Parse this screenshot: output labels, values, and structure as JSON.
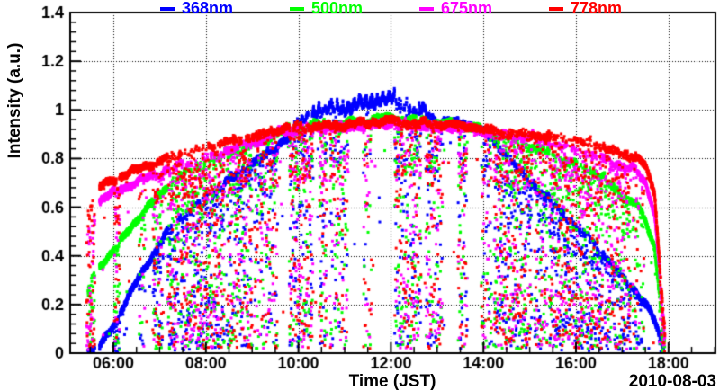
{
  "chart_data": {
    "type": "scatter",
    "title": "",
    "xlabel": "Time (JST)",
    "ylabel": "Intensity (a.u.)",
    "date_label": "2010-08-03",
    "legend_position": "top",
    "grid": "dotted lines at major ticks, both axes",
    "xlim_hours": [
      5.066,
      19.015
    ],
    "ylim": [
      0,
      1.4
    ],
    "x_ticks": [
      {
        "hour": 6,
        "label": "06:00"
      },
      {
        "hour": 8,
        "label": "08:00"
      },
      {
        "hour": 10,
        "label": "10:00"
      },
      {
        "hour": 12,
        "label": "12:00"
      },
      {
        "hour": 14,
        "label": "14:00"
      },
      {
        "hour": 16,
        "label": "16:00"
      },
      {
        "hour": 18,
        "label": "18:00"
      }
    ],
    "x_minor_step_hours": 0.5,
    "y_ticks": [
      {
        "value": 0,
        "label": "0"
      },
      {
        "value": 0.2,
        "label": "0.2"
      },
      {
        "value": 0.4,
        "label": "0.4"
      },
      {
        "value": 0.6,
        "label": "0.6"
      },
      {
        "value": 0.8,
        "label": "0.8"
      },
      {
        "value": 1.0,
        "label": "1"
      },
      {
        "value": 1.2,
        "label": "1.2"
      },
      {
        "value": 1.4,
        "label": "1.4"
      }
    ],
    "y_minor_step": 0.04,
    "sample_step_hours": 0.004,
    "series": [
      {
        "name": "368nm",
        "color": "#0000ff",
        "start_hour": 5.45,
        "end_hour": 17.9,
        "noon_spikes": {
          "range": [
            9.85,
            12.75
          ],
          "amplitude": 0.045
        },
        "envelope": [
          [
            5.45,
            0.02
          ],
          [
            5.7,
            0.03
          ],
          [
            6.0,
            0.12
          ],
          [
            6.5,
            0.3
          ],
          [
            7.0,
            0.46
          ],
          [
            7.4,
            0.56
          ],
          [
            7.8,
            0.63
          ],
          [
            8.2,
            0.68
          ],
          [
            8.6,
            0.74
          ],
          [
            9.0,
            0.79
          ],
          [
            9.4,
            0.84
          ],
          [
            9.8,
            0.9
          ],
          [
            10.0,
            0.95
          ],
          [
            10.2,
            0.97
          ],
          [
            10.5,
            0.99
          ],
          [
            10.8,
            1.01
          ],
          [
            11.1,
            1.0
          ],
          [
            11.4,
            1.02
          ],
          [
            11.7,
            1.03
          ],
          [
            12.0,
            1.04
          ],
          [
            12.2,
            1.02
          ],
          [
            12.5,
            1.01
          ],
          [
            12.7,
            0.99
          ],
          [
            13.0,
            0.97
          ],
          [
            13.3,
            0.96
          ],
          [
            13.6,
            0.95
          ],
          [
            14.0,
            0.92
          ],
          [
            14.5,
            0.83
          ],
          [
            15.0,
            0.72
          ],
          [
            15.5,
            0.63
          ],
          [
            16.0,
            0.54
          ],
          [
            16.3,
            0.48
          ],
          [
            16.6,
            0.42
          ],
          [
            17.0,
            0.33
          ],
          [
            17.3,
            0.26
          ],
          [
            17.5,
            0.21
          ],
          [
            17.7,
            0.14
          ],
          [
            17.9,
            0.03
          ]
        ]
      },
      {
        "name": "500nm",
        "color": "#00ff00",
        "start_hour": 5.45,
        "end_hour": 17.92,
        "envelope": [
          [
            5.45,
            0.3
          ],
          [
            5.7,
            0.36
          ],
          [
            6.0,
            0.43
          ],
          [
            6.3,
            0.5
          ],
          [
            6.7,
            0.6
          ],
          [
            7.0,
            0.66
          ],
          [
            7.3,
            0.72
          ],
          [
            7.6,
            0.76
          ],
          [
            8.0,
            0.8
          ],
          [
            8.5,
            0.84
          ],
          [
            9.0,
            0.87
          ],
          [
            9.5,
            0.91
          ],
          [
            10.0,
            0.945
          ],
          [
            10.5,
            0.95
          ],
          [
            11.0,
            0.955
          ],
          [
            11.5,
            0.965
          ],
          [
            12.0,
            0.975
          ],
          [
            12.5,
            0.97
          ],
          [
            13.0,
            0.955
          ],
          [
            13.5,
            0.945
          ],
          [
            14.0,
            0.925
          ],
          [
            14.5,
            0.895
          ],
          [
            15.0,
            0.86
          ],
          [
            15.5,
            0.83
          ],
          [
            16.0,
            0.79
          ],
          [
            16.3,
            0.77
          ],
          [
            16.6,
            0.73
          ],
          [
            17.0,
            0.66
          ],
          [
            17.3,
            0.62
          ],
          [
            17.5,
            0.55
          ],
          [
            17.7,
            0.44
          ],
          [
            17.92,
            0.05
          ]
        ]
      },
      {
        "name": "675nm",
        "color": "#ff00ff",
        "start_hour": 5.42,
        "end_hour": 17.92,
        "envelope": [
          [
            5.42,
            0.5
          ],
          [
            5.7,
            0.63
          ],
          [
            6.0,
            0.67
          ],
          [
            6.5,
            0.71
          ],
          [
            7.0,
            0.75
          ],
          [
            7.5,
            0.79
          ],
          [
            8.0,
            0.82
          ],
          [
            8.5,
            0.85
          ],
          [
            9.0,
            0.88
          ],
          [
            9.5,
            0.915
          ],
          [
            10.0,
            0.935
          ],
          [
            10.5,
            0.935
          ],
          [
            11.0,
            0.94
          ],
          [
            11.5,
            0.945
          ],
          [
            12.0,
            0.955
          ],
          [
            12.5,
            0.95
          ],
          [
            13.0,
            0.94
          ],
          [
            13.5,
            0.935
          ],
          [
            14.0,
            0.92
          ],
          [
            14.5,
            0.91
          ],
          [
            15.0,
            0.9
          ],
          [
            15.5,
            0.88
          ],
          [
            16.0,
            0.85
          ],
          [
            16.5,
            0.82
          ],
          [
            17.0,
            0.78
          ],
          [
            17.3,
            0.76
          ],
          [
            17.5,
            0.71
          ],
          [
            17.7,
            0.58
          ],
          [
            17.92,
            0.08
          ]
        ]
      },
      {
        "name": "778nm",
        "color": "#ff0000",
        "start_hour": 5.42,
        "end_hour": 17.92,
        "envelope": [
          [
            5.42,
            0.58
          ],
          [
            5.7,
            0.69
          ],
          [
            6.0,
            0.72
          ],
          [
            6.5,
            0.76
          ],
          [
            7.0,
            0.8
          ],
          [
            7.5,
            0.835
          ],
          [
            8.0,
            0.86
          ],
          [
            8.5,
            0.88
          ],
          [
            9.0,
            0.9
          ],
          [
            9.5,
            0.925
          ],
          [
            10.0,
            0.945
          ],
          [
            10.5,
            0.945
          ],
          [
            11.0,
            0.95
          ],
          [
            11.5,
            0.955
          ],
          [
            12.0,
            0.965
          ],
          [
            12.5,
            0.96
          ],
          [
            13.0,
            0.95
          ],
          [
            13.5,
            0.945
          ],
          [
            14.0,
            0.93
          ],
          [
            14.5,
            0.92
          ],
          [
            15.0,
            0.91
          ],
          [
            15.5,
            0.9
          ],
          [
            16.0,
            0.89
          ],
          [
            16.3,
            0.88
          ],
          [
            16.6,
            0.86
          ],
          [
            17.0,
            0.825
          ],
          [
            17.3,
            0.82
          ],
          [
            17.5,
            0.78
          ],
          [
            17.7,
            0.65
          ],
          [
            17.92,
            0.1
          ]
        ]
      }
    ],
    "cloud_dropout_windows": [
      [
        5.42,
        5.6,
        1.0
      ],
      [
        6.02,
        6.14,
        0.85
      ],
      [
        6.55,
        6.7,
        0.35
      ],
      [
        6.85,
        7.08,
        0.7
      ],
      [
        7.17,
        7.42,
        0.9
      ],
      [
        7.45,
        8.4,
        0.9
      ],
      [
        8.45,
        9.0,
        0.75
      ],
      [
        9.05,
        9.55,
        0.55
      ],
      [
        9.8,
        10.32,
        0.8
      ],
      [
        10.45,
        10.62,
        0.65
      ],
      [
        10.68,
        11.08,
        0.55
      ],
      [
        11.4,
        11.58,
        0.45
      ],
      [
        12.08,
        12.65,
        0.7
      ],
      [
        12.75,
        13.12,
        0.65
      ],
      [
        13.45,
        13.65,
        0.55
      ],
      [
        13.95,
        14.18,
        0.5
      ],
      [
        14.22,
        15.05,
        0.8
      ],
      [
        15.1,
        15.38,
        0.65
      ],
      [
        15.42,
        16.58,
        0.85
      ],
      [
        16.62,
        17.18,
        0.75
      ],
      [
        17.22,
        17.48,
        0.35
      ],
      [
        17.8,
        17.95,
        0.7
      ]
    ],
    "data_gaps": [
      [
        5.6,
        5.7
      ]
    ],
    "base_dropout_probability": 0.015
  }
}
